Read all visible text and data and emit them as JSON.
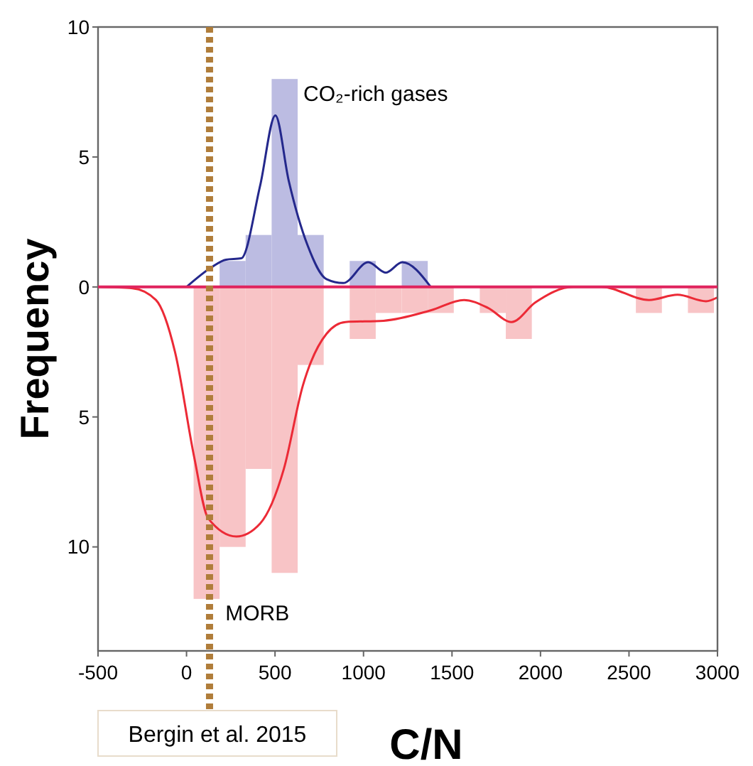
{
  "chart_data": {
    "type": "histogram",
    "xlabel": "C/N",
    "ylabel": "Frequency",
    "bins": [
      40,
      187,
      334,
      481,
      628,
      775,
      922,
      1069,
      1216,
      1363,
      1510,
      1657,
      1804,
      1951,
      2098,
      2245,
      2392,
      2539,
      2686,
      2833,
      2980
    ],
    "series": [
      {
        "name": "CO₂-rich gases",
        "color": "#bcbce2",
        "values": [
          0,
          1,
          2,
          8,
          2,
          0,
          1,
          0,
          1,
          0,
          0,
          0,
          0,
          0,
          0,
          0,
          0,
          0,
          0,
          0
        ]
      },
      {
        "name": "MORB",
        "color": "#f8c4c6",
        "values": [
          -12,
          -10,
          -7,
          -11,
          -3,
          0,
          -2,
          -1,
          -1,
          -1,
          0,
          -1,
          -2,
          0,
          0,
          0,
          0,
          -1,
          0,
          -1
        ]
      },
      {
        "type": "line",
        "color": "#24288c",
        "x": [
          0,
          142,
          223,
          309,
          416,
          502,
          577,
          684,
          791,
          885,
          1027,
          1126,
          1219,
          1380
        ],
        "values": [
          0,
          0.76,
          1.05,
          1.1,
          3.9,
          6.6,
          4.1,
          1.6,
          0.3,
          0.15,
          0.95,
          0.55,
          0.95,
          0
        ]
      },
      {
        "type": "line",
        "color": "#ec2a36",
        "x": [
          -494,
          -305,
          -173,
          -65,
          42,
          122,
          282,
          416,
          550,
          657,
          791,
          898,
          1113,
          1380,
          1568,
          1702,
          1836,
          1970,
          2184,
          2345,
          2613,
          2774,
          2935,
          3000
        ],
        "values": [
          0,
          -0.05,
          -0.5,
          -2.5,
          -6.5,
          -8.9,
          -9.6,
          -9.1,
          -7,
          -3.8,
          -1.8,
          -1.35,
          -1.3,
          -0.9,
          -0.5,
          -0.8,
          -1.35,
          -0.6,
          0,
          0,
          -0.5,
          -0.3,
          -0.55,
          -0.4
        ]
      }
    ],
    "xlim": [
      -500,
      3000
    ],
    "xticks": [
      -500,
      0,
      500,
      1000,
      1500,
      2000,
      2500,
      3000
    ],
    "ylim": [
      -14,
      10
    ],
    "yticks": [
      10,
      5,
      0,
      {
        "value": -5,
        "label": "5"
      },
      {
        "value": -10,
        "label": "10"
      }
    ],
    "ref_lines": [
      {
        "axis": "y",
        "value": 0,
        "color": "#e0245e",
        "line_style": "solid"
      },
      {
        "axis": "x",
        "value": 130,
        "label": "Bergin et al. 2015",
        "color": "#b07d3a",
        "line_style": "dotted"
      }
    ],
    "grid": false,
    "legend": false
  }
}
